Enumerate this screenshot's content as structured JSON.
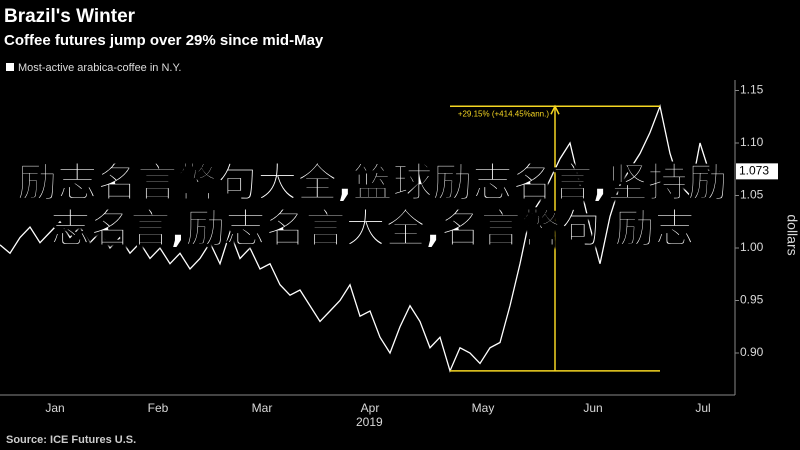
{
  "chart_data": {
    "type": "line",
    "title": "Brazil's Winter",
    "subtitle": "Coffee futures jump over 29% since mid-May",
    "source": "Source: ICE Futures U.S.",
    "y_axis_label": "dollars",
    "x_year": "2019",
    "series": [
      {
        "name": "Most-active arabica-coffee in N.Y.",
        "color": "#ffffff",
        "values": [
          1.003,
          0.995,
          1.01,
          1.02,
          1.005,
          1.015,
          1.025,
          1.01,
          1.02,
          1.005,
          1.015,
          1.0,
          1.01,
          0.995,
          1.005,
          0.99,
          1.0,
          0.985,
          0.995,
          0.98,
          0.99,
          1.005,
          0.985,
          1.015,
          0.99,
          1.0,
          0.98,
          0.985,
          0.965,
          0.955,
          0.96,
          0.945,
          0.93,
          0.94,
          0.95,
          0.965,
          0.935,
          0.94,
          0.915,
          0.9,
          0.925,
          0.945,
          0.93,
          0.905,
          0.915,
          0.883,
          0.905,
          0.9,
          0.89,
          0.905,
          0.91,
          0.945,
          0.985,
          1.03,
          1.045,
          1.065,
          1.085,
          1.1,
          1.06,
          1.02,
          0.985,
          1.03,
          1.06,
          1.075,
          1.09,
          1.11,
          1.135,
          1.09,
          1.06,
          1.05,
          1.1,
          1.07,
          1.073
        ]
      }
    ],
    "annotation": {
      "text": "+29.15% (+414.45%ann.)",
      "color": "#f5d622",
      "from_index": 45,
      "to_index": 66
    },
    "xlim": [
      0,
      72
    ],
    "xticks": [
      {
        "value": 5.5,
        "label": "Jan"
      },
      {
        "value": 15.8,
        "label": "Feb"
      },
      {
        "value": 26.2,
        "label": "Mar"
      },
      {
        "value": 37,
        "label": "Apr"
      },
      {
        "value": 48.3,
        "label": "May"
      },
      {
        "value": 59.3,
        "label": "Jun"
      },
      {
        "value": 70.3,
        "label": "Jul"
      }
    ],
    "ylim": [
      0.86,
      1.16
    ],
    "yticks": [
      {
        "value": 0.9,
        "label": "0.90"
      },
      0.95,
      {
        "value": 1.0,
        "label": "1.00"
      },
      1.05,
      {
        "value": 1.1,
        "label": "1.10"
      },
      1.15
    ]
  },
  "overlay_text": "励志名言警句大全,篮球励志名言,坚持励志名言,励志名言大全,名言警句 励志"
}
